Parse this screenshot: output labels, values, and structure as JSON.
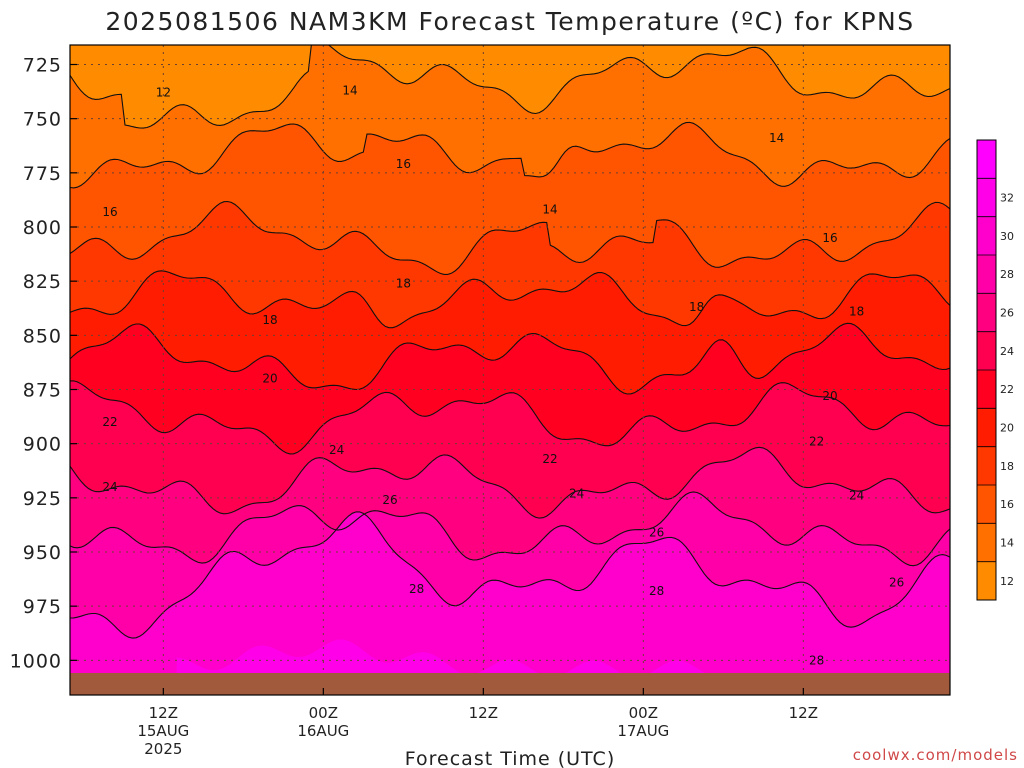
{
  "chart_data": {
    "type": "heatmap",
    "title": "2025081506 NAM3KM Forecast Temperature (ºC) for KPNS",
    "xlabel": "Forecast Time (UTC)",
    "ylabel": "",
    "y_ticks": [
      "725",
      "750",
      "775",
      "800",
      "825",
      "850",
      "875",
      "900",
      "925",
      "950",
      "975",
      "1000"
    ],
    "x_ticks": [
      {
        "line1": "12Z",
        "line2": "15AUG",
        "line3": "2025"
      },
      {
        "line1": "00Z",
        "line2": "16AUG",
        "line3": ""
      },
      {
        "line1": "12Z",
        "line2": "",
        "line3": ""
      },
      {
        "line1": "00Z",
        "line2": "17AUG",
        "line3": ""
      },
      {
        "line1": "12Z",
        "line2": "",
        "line3": ""
      }
    ],
    "colorbar_ticks": [
      "12",
      "14",
      "16",
      "18",
      "20",
      "22",
      "24",
      "26",
      "28",
      "30",
      "32"
    ],
    "colorbar_colors": [
      "#ff8c00",
      "#ff7000",
      "#ff5400",
      "#ff3800",
      "#ff1c00",
      "#ff0020",
      "#ff0050",
      "#ff0080",
      "#ff00a8",
      "#ff00cc",
      "#ff00e8",
      "#ff00ff"
    ],
    "contour_levels": [
      12,
      14,
      16,
      18,
      20,
      22,
      24,
      26,
      28
    ],
    "contour_labels": [
      {
        "text": "12",
        "hour": 7,
        "p": 738
      },
      {
        "text": "14",
        "hour": 21,
        "p": 737
      },
      {
        "text": "16",
        "hour": 3,
        "p": 793
      },
      {
        "text": "16",
        "hour": 25,
        "p": 771
      },
      {
        "text": "14",
        "hour": 36,
        "p": 792
      },
      {
        "text": "14",
        "hour": 53,
        "p": 759
      },
      {
        "text": "16",
        "hour": 57,
        "p": 805
      },
      {
        "text": "18",
        "hour": 15,
        "p": 843
      },
      {
        "text": "18",
        "hour": 25,
        "p": 826
      },
      {
        "text": "18",
        "hour": 47,
        "p": 837
      },
      {
        "text": "18",
        "hour": 59,
        "p": 839
      },
      {
        "text": "20",
        "hour": 15,
        "p": 870
      },
      {
        "text": "20",
        "hour": 57,
        "p": 878
      },
      {
        "text": "22",
        "hour": 3,
        "p": 890
      },
      {
        "text": "22",
        "hour": 36,
        "p": 907
      },
      {
        "text": "22",
        "hour": 56,
        "p": 899
      },
      {
        "text": "24",
        "hour": 3,
        "p": 920
      },
      {
        "text": "24",
        "hour": 20,
        "p": 903
      },
      {
        "text": "24",
        "hour": 38,
        "p": 923
      },
      {
        "text": "24",
        "hour": 59,
        "p": 924
      },
      {
        "text": "26",
        "hour": 24,
        "p": 926
      },
      {
        "text": "26",
        "hour": 44,
        "p": 941
      },
      {
        "text": "26",
        "hour": 62,
        "p": 964
      },
      {
        "text": "28",
        "hour": 26,
        "p": 967
      },
      {
        "text": "28",
        "hour": 44,
        "p": 968
      },
      {
        "text": "28",
        "hour": 56,
        "p": 1000
      }
    ],
    "hours_range": [
      0,
      66
    ],
    "pressure_range_hpa": [
      716,
      1016
    ],
    "grid": true,
    "legend": "colorbar right"
  },
  "credit": "coolwx.com/models"
}
